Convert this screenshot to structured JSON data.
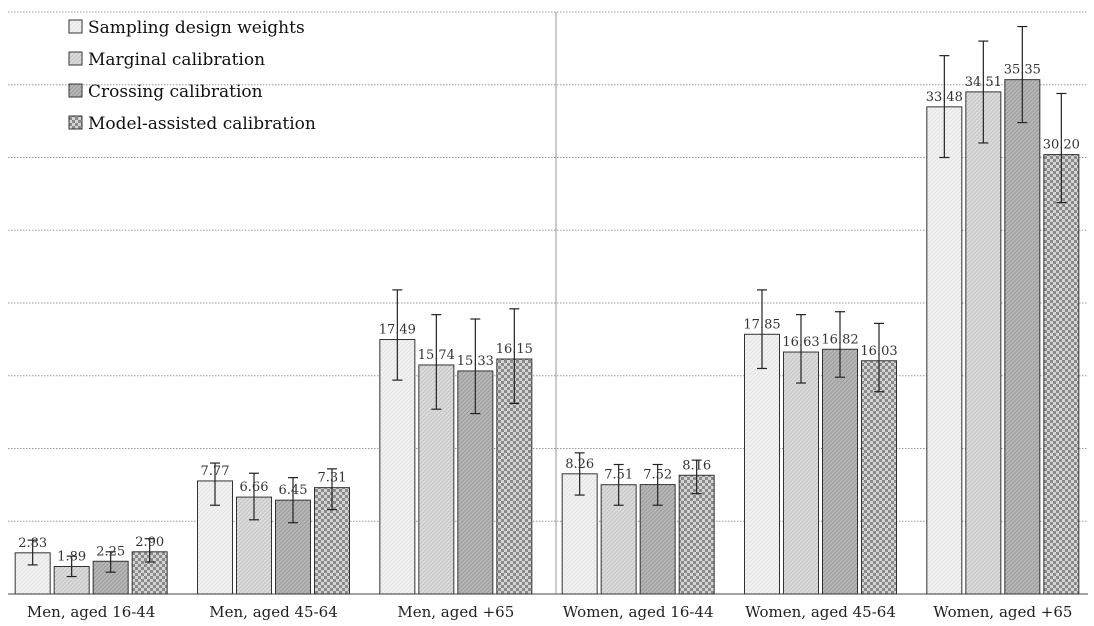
{
  "chart_data": {
    "type": "bar",
    "title": "",
    "xlabel": "",
    "ylabel": "",
    "ylim": [
      0,
      40
    ],
    "grid": true,
    "legend_position": "top-left",
    "categories": [
      "Men, aged 16-44",
      "Men, aged 45-64",
      "Men, aged +65",
      "Women, aged 16-44",
      "Women, aged 45-64",
      "Women, aged +65"
    ],
    "series": [
      {
        "name": "Sampling design weights",
        "pattern": "plain-light",
        "values": [
          2.83,
          7.77,
          17.49,
          8.26,
          17.85,
          33.48
        ],
        "labels": [
          "2.83",
          "7.77",
          "17.49",
          "8.26",
          "17.85",
          "33.48"
        ],
        "error_low": [
          2.0,
          6.1,
          14.7,
          6.8,
          15.5,
          30.0
        ],
        "error_high": [
          3.7,
          9.0,
          20.9,
          9.7,
          20.9,
          37.0
        ]
      },
      {
        "name": "Marginal calibration",
        "pattern": "fine-hatch",
        "values": [
          1.89,
          6.66,
          15.74,
          7.51,
          16.63,
          34.51
        ],
        "labels": [
          "1.89",
          "6.66",
          "15.74",
          "7.51",
          "16.63",
          "34.51"
        ],
        "error_low": [
          1.2,
          5.1,
          12.7,
          6.1,
          14.5,
          31.0
        ],
        "error_high": [
          2.6,
          8.3,
          19.2,
          8.9,
          19.2,
          38.0
        ]
      },
      {
        "name": "Crossing calibration",
        "pattern": "dark-hatch",
        "values": [
          2.25,
          6.45,
          15.33,
          7.52,
          16.82,
          35.35
        ],
        "labels": [
          "2.25",
          "6.45",
          "15.33",
          "7.52",
          "16.82",
          "35.35"
        ],
        "error_low": [
          1.5,
          4.9,
          12.4,
          6.1,
          14.9,
          32.4
        ],
        "error_high": [
          2.9,
          8.0,
          18.9,
          8.9,
          19.4,
          39.0
        ]
      },
      {
        "name": "Model-assisted calibration",
        "pattern": "checker",
        "values": [
          2.9,
          7.31,
          16.15,
          8.16,
          16.03,
          30.2
        ],
        "labels": [
          "2.90",
          "7.31",
          "16.15",
          "8.16",
          "16.03",
          "30.20"
        ],
        "error_low": [
          2.2,
          5.8,
          13.1,
          6.9,
          13.9,
          26.9
        ],
        "error_high": [
          3.8,
          8.6,
          19.6,
          9.2,
          18.6,
          34.4
        ]
      }
    ]
  }
}
